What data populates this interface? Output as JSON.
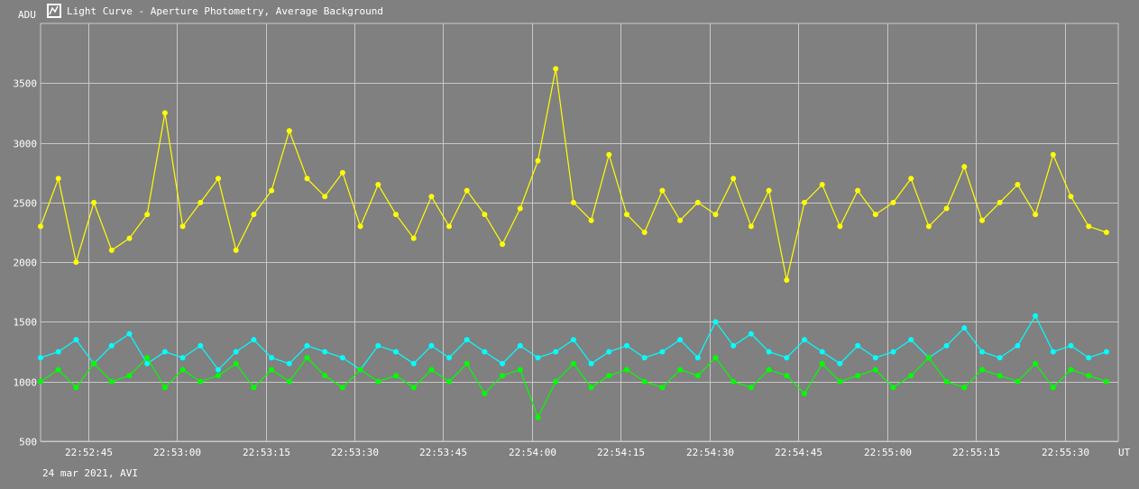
{
  "window": {
    "title": "Light Curve - Aperture Photometry, Average Background",
    "icon": "light-curve-app-icon"
  },
  "footer": {
    "date_label": "24 mar 2021, AVI"
  },
  "chart_data": {
    "type": "line",
    "title": "Light Curve - Aperture Photometry, Average Background",
    "ylabel": "ADU",
    "xlabel": "UT",
    "ylim": [
      500,
      4000
    ],
    "xlim": [
      "22:52:37",
      "22:55:39"
    ],
    "grid": true,
    "background_color": "#808080",
    "grid_color": "#c8c8c8",
    "y_ticks": [
      500,
      1000,
      1500,
      2000,
      2500,
      3000,
      3500
    ],
    "x_ticks": [
      "22:52:45",
      "22:53:00",
      "22:53:15",
      "22:53:30",
      "22:53:45",
      "22:54:00",
      "22:54:15",
      "22:54:30",
      "22:54:45",
      "22:55:00",
      "22:55:15",
      "22:55:30"
    ],
    "series": [
      {
        "color": "#ffff00",
        "x": [
          "22:52:37",
          "22:52:40",
          "22:52:43",
          "22:52:46",
          "22:52:49",
          "22:52:52",
          "22:52:55",
          "22:52:58",
          "22:53:01",
          "22:53:04",
          "22:53:07",
          "22:53:10",
          "22:53:13",
          "22:53:16",
          "22:53:19",
          "22:53:22",
          "22:53:25",
          "22:53:28",
          "22:53:31",
          "22:53:34",
          "22:53:37",
          "22:53:40",
          "22:53:43",
          "22:53:46",
          "22:53:49",
          "22:53:52",
          "22:53:55",
          "22:53:58",
          "22:54:01",
          "22:54:04",
          "22:54:07",
          "22:54:10",
          "22:54:13",
          "22:54:16",
          "22:54:19",
          "22:54:22",
          "22:54:25",
          "22:54:28",
          "22:54:31",
          "22:54:34",
          "22:54:37",
          "22:54:40",
          "22:54:43",
          "22:54:46",
          "22:54:49",
          "22:54:52",
          "22:54:55",
          "22:54:58",
          "22:55:01",
          "22:55:04",
          "22:55:07",
          "22:55:10",
          "22:55:13",
          "22:55:16",
          "22:55:19",
          "22:55:22",
          "22:55:25",
          "22:55:28",
          "22:55:31",
          "22:55:34",
          "22:55:37"
        ],
        "values": [
          2300,
          2700,
          2000,
          2500,
          2100,
          2200,
          2400,
          3250,
          2300,
          2500,
          2700,
          2100,
          2400,
          2600,
          3100,
          2700,
          2550,
          2750,
          2300,
          2650,
          2400,
          2200,
          2550,
          2300,
          2600,
          2400,
          2150,
          2450,
          2850,
          3620,
          2500,
          2350,
          2900,
          2400,
          2250,
          2600,
          2350,
          2500,
          2400,
          2700,
          2300,
          2600,
          1850,
          2500,
          2650,
          2300,
          2600,
          2400,
          2500,
          2700,
          2300,
          2450,
          2800,
          2350,
          2500,
          2650,
          2400,
          2900,
          2550,
          2300,
          2250
        ]
      },
      {
        "color": "#00ffff",
        "x": [
          "22:52:37",
          "22:52:40",
          "22:52:43",
          "22:52:46",
          "22:52:49",
          "22:52:52",
          "22:52:55",
          "22:52:58",
          "22:53:01",
          "22:53:04",
          "22:53:07",
          "22:53:10",
          "22:53:13",
          "22:53:16",
          "22:53:19",
          "22:53:22",
          "22:53:25",
          "22:53:28",
          "22:53:31",
          "22:53:34",
          "22:53:37",
          "22:53:40",
          "22:53:43",
          "22:53:46",
          "22:53:49",
          "22:53:52",
          "22:53:55",
          "22:53:58",
          "22:54:01",
          "22:54:04",
          "22:54:07",
          "22:54:10",
          "22:54:13",
          "22:54:16",
          "22:54:19",
          "22:54:22",
          "22:54:25",
          "22:54:28",
          "22:54:31",
          "22:54:34",
          "22:54:37",
          "22:54:40",
          "22:54:43",
          "22:54:46",
          "22:54:49",
          "22:54:52",
          "22:54:55",
          "22:54:58",
          "22:55:01",
          "22:55:04",
          "22:55:07",
          "22:55:10",
          "22:55:13",
          "22:55:16",
          "22:55:19",
          "22:55:22",
          "22:55:25",
          "22:55:28",
          "22:55:31",
          "22:55:34",
          "22:55:37"
        ],
        "values": [
          1200,
          1250,
          1350,
          1150,
          1300,
          1400,
          1150,
          1250,
          1200,
          1300,
          1100,
          1250,
          1350,
          1200,
          1150,
          1300,
          1250,
          1200,
          1100,
          1300,
          1250,
          1150,
          1300,
          1200,
          1350,
          1250,
          1150,
          1300,
          1200,
          1250,
          1350,
          1150,
          1250,
          1300,
          1200,
          1250,
          1350,
          1200,
          1500,
          1300,
          1400,
          1250,
          1200,
          1350,
          1250,
          1150,
          1300,
          1200,
          1250,
          1350,
          1200,
          1300,
          1450,
          1250,
          1200,
          1300,
          1550,
          1250,
          1300,
          1200,
          1250
        ]
      },
      {
        "color": "#00ff00",
        "x": [
          "22:52:37",
          "22:52:40",
          "22:52:43",
          "22:52:46",
          "22:52:49",
          "22:52:52",
          "22:52:55",
          "22:52:58",
          "22:53:01",
          "22:53:04",
          "22:53:07",
          "22:53:10",
          "22:53:13",
          "22:53:16",
          "22:53:19",
          "22:53:22",
          "22:53:25",
          "22:53:28",
          "22:53:31",
          "22:53:34",
          "22:53:37",
          "22:53:40",
          "22:53:43",
          "22:53:46",
          "22:53:49",
          "22:53:52",
          "22:53:55",
          "22:53:58",
          "22:54:01",
          "22:54:04",
          "22:54:07",
          "22:54:10",
          "22:54:13",
          "22:54:16",
          "22:54:19",
          "22:54:22",
          "22:54:25",
          "22:54:28",
          "22:54:31",
          "22:54:34",
          "22:54:37",
          "22:54:40",
          "22:54:43",
          "22:54:46",
          "22:54:49",
          "22:54:52",
          "22:54:55",
          "22:54:58",
          "22:55:01",
          "22:55:04",
          "22:55:07",
          "22:55:10",
          "22:55:13",
          "22:55:16",
          "22:55:19",
          "22:55:22",
          "22:55:25",
          "22:55:28",
          "22:55:31",
          "22:55:34",
          "22:55:37"
        ],
        "values": [
          1000,
          1100,
          950,
          1150,
          1000,
          1050,
          1200,
          950,
          1100,
          1000,
          1050,
          1150,
          950,
          1100,
          1000,
          1200,
          1050,
          950,
          1100,
          1000,
          1050,
          950,
          1100,
          1000,
          1150,
          900,
          1050,
          1100,
          700,
          1000,
          1150,
          950,
          1050,
          1100,
          1000,
          950,
          1100,
          1050,
          1200,
          1000,
          950,
          1100,
          1050,
          900,
          1150,
          1000,
          1050,
          1100,
          950,
          1050,
          1200,
          1000,
          950,
          1100,
          1050,
          1000,
          1150,
          950,
          1100,
          1050,
          1000
        ]
      }
    ]
  }
}
